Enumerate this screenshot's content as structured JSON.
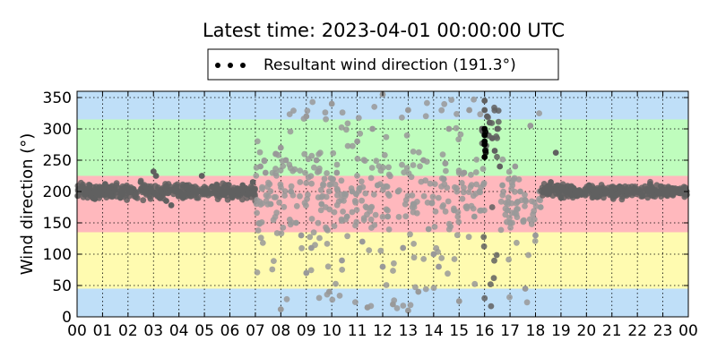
{
  "chart_data": {
    "type": "scatter",
    "title": "Latest time: 2023-04-01 00:00:00 UTC",
    "xlabel": "",
    "ylabel": "Wind direction (°)",
    "xlim": [
      0,
      24
    ],
    "ylim": [
      0,
      360
    ],
    "x_ticks": [
      "00",
      "01",
      "02",
      "03",
      "04",
      "05",
      "06",
      "07",
      "08",
      "09",
      "10",
      "11",
      "12",
      "13",
      "14",
      "15",
      "16",
      "17",
      "18",
      "19",
      "20",
      "21",
      "22",
      "23",
      "00"
    ],
    "y_ticks": [
      0,
      50,
      100,
      150,
      200,
      250,
      300,
      350
    ],
    "grid": true,
    "legend": {
      "placement": "top-center",
      "label": "Resultant wind direction (191.3°)"
    },
    "bands": [
      {
        "from": 0,
        "to": 45,
        "color": "#bfdff8"
      },
      {
        "from": 45,
        "to": 135,
        "color": "#fffbb0"
      },
      {
        "from": 135,
        "to": 225,
        "color": "#ffb8bd"
      },
      {
        "from": 225,
        "to": 315,
        "color": "#bffdbd"
      },
      {
        "from": 315,
        "to": 360,
        "color": "#bfdff8"
      }
    ],
    "colors": {
      "older_points": "#999999",
      "recent_points": "#606060",
      "latest_points": "#000000"
    },
    "series": [
      {
        "hour_start": 0,
        "hour_end": 3,
        "center": 200,
        "spread": 12,
        "color": "#606060",
        "points": [
          [
            0.1,
            205
          ],
          [
            0.3,
            195
          ],
          [
            0.5,
            210
          ],
          [
            0.7,
            188
          ],
          [
            0.9,
            200
          ],
          [
            1.1,
            212
          ],
          [
            1.3,
            198
          ],
          [
            1.5,
            203
          ],
          [
            1.7,
            190
          ],
          [
            1.9,
            207
          ],
          [
            2.1,
            199
          ],
          [
            2.3,
            195
          ],
          [
            2.5,
            215
          ],
          [
            2.7,
            200
          ],
          [
            2.9,
            205
          ],
          [
            3.0,
            232
          ],
          [
            3.1,
            225
          ],
          [
            3.3,
            192
          ]
        ]
      },
      {
        "hour_start": 3,
        "hour_end": 7,
        "center": 200,
        "spread": 12,
        "color": "#606060",
        "points": [
          [
            3.5,
            185
          ],
          [
            3.7,
            178
          ],
          [
            3.9,
            200
          ],
          [
            4.1,
            195
          ],
          [
            4.3,
            210
          ],
          [
            4.5,
            205
          ],
          [
            4.7,
            198
          ],
          [
            4.9,
            225
          ],
          [
            5.1,
            202
          ],
          [
            5.3,
            208
          ],
          [
            5.5,
            210
          ],
          [
            5.7,
            195
          ],
          [
            5.9,
            200
          ],
          [
            6.1,
            192
          ],
          [
            6.3,
            205
          ],
          [
            6.5,
            210
          ],
          [
            6.7,
            195
          ],
          [
            6.9,
            215
          ]
        ]
      },
      {
        "hour_start": 7,
        "hour_end": 16,
        "center": 200,
        "spread": 70,
        "color": "#999999",
        "points": [
          [
            7.2,
            240
          ],
          [
            7.4,
            230
          ],
          [
            7.6,
            180
          ],
          [
            7.8,
            260
          ],
          [
            8.0,
            270
          ],
          [
            8.0,
            12
          ],
          [
            8.2,
            250
          ],
          [
            8.4,
            200
          ],
          [
            8.6,
            150
          ],
          [
            8.8,
            130
          ],
          [
            9.0,
            320
          ],
          [
            9.0,
            70
          ],
          [
            9.2,
            110
          ],
          [
            9.4,
            250
          ],
          [
            9.6,
            180
          ],
          [
            9.8,
            140
          ],
          [
            9.9,
            40
          ],
          [
            10.0,
            340
          ],
          [
            10.2,
            230
          ],
          [
            10.4,
            90
          ],
          [
            10.6,
            160
          ],
          [
            10.8,
            200
          ],
          [
            11.0,
            280
          ],
          [
            11.2,
            120
          ],
          [
            11.4,
            15
          ],
          [
            11.6,
            300
          ],
          [
            11.8,
            210
          ],
          [
            12.0,
            355
          ],
          [
            12.0,
            80
          ],
          [
            12.2,
            160
          ],
          [
            12.4,
            20
          ],
          [
            12.6,
            200
          ],
          [
            12.8,
            110
          ],
          [
            13.0,
            330
          ],
          [
            13.0,
            10
          ],
          [
            13.2,
            180
          ],
          [
            13.4,
            40
          ],
          [
            13.6,
            250
          ],
          [
            13.8,
            140
          ],
          [
            14.0,
            100
          ],
          [
            14.2,
            80
          ],
          [
            14.4,
            220
          ],
          [
            14.6,
            300
          ],
          [
            14.8,
            170
          ],
          [
            15.0,
            25
          ],
          [
            15.2,
            230
          ],
          [
            15.4,
            330
          ],
          [
            15.6,
            160
          ],
          [
            15.8,
            200
          ]
        ]
      },
      {
        "hour_start": 15.9,
        "hour_end": 16.6,
        "center": 300,
        "spread": 40,
        "color": "#606060",
        "points": [
          [
            15.9,
            300
          ],
          [
            16.0,
            345
          ],
          [
            16.0,
            330
          ],
          [
            16.1,
            320
          ],
          [
            16.2,
            310
          ],
          [
            16.3,
            285
          ],
          [
            16.4,
            265
          ],
          [
            16.5,
            300
          ],
          [
            16.6,
            240
          ]
        ]
      },
      {
        "hour_start": 16.0,
        "hour_end": 16.05,
        "center": 280,
        "spread": 25,
        "color": "#000000",
        "points": [
          [
            16.0,
            255
          ],
          [
            16.0,
            275
          ],
          [
            16.0,
            280
          ],
          [
            16.0,
            290
          ],
          [
            16.0,
            300
          ]
        ]
      },
      {
        "hour_start": 16.6,
        "hour_end": 18.2,
        "center": 180,
        "spread": 40,
        "color": "#999999",
        "points": [
          [
            16.7,
            210
          ],
          [
            16.9,
            170
          ],
          [
            17.0,
            150
          ],
          [
            17.2,
            240
          ],
          [
            17.4,
            200
          ],
          [
            17.6,
            45
          ],
          [
            17.8,
            305
          ],
          [
            18.0,
            130
          ],
          [
            18.2,
            175
          ]
        ]
      },
      {
        "hour_start": 18.2,
        "hour_end": 24,
        "center": 200,
        "spread": 10,
        "color": "#606060",
        "points": [
          [
            18.4,
            205
          ],
          [
            18.6,
            215
          ],
          [
            18.8,
            262
          ],
          [
            19.0,
            190
          ],
          [
            19.2,
            200
          ],
          [
            19.5,
            205
          ],
          [
            19.8,
            195
          ],
          [
            20.1,
            210
          ],
          [
            20.4,
            198
          ],
          [
            20.7,
            202
          ],
          [
            21.0,
            195
          ],
          [
            21.3,
            208
          ],
          [
            21.6,
            200
          ],
          [
            21.9,
            205
          ],
          [
            22.2,
            193
          ],
          [
            22.5,
            212
          ],
          [
            22.8,
            200
          ],
          [
            23.1,
            198
          ],
          [
            23.4,
            205
          ],
          [
            23.7,
            200
          ],
          [
            23.9,
            202
          ]
        ]
      }
    ]
  }
}
